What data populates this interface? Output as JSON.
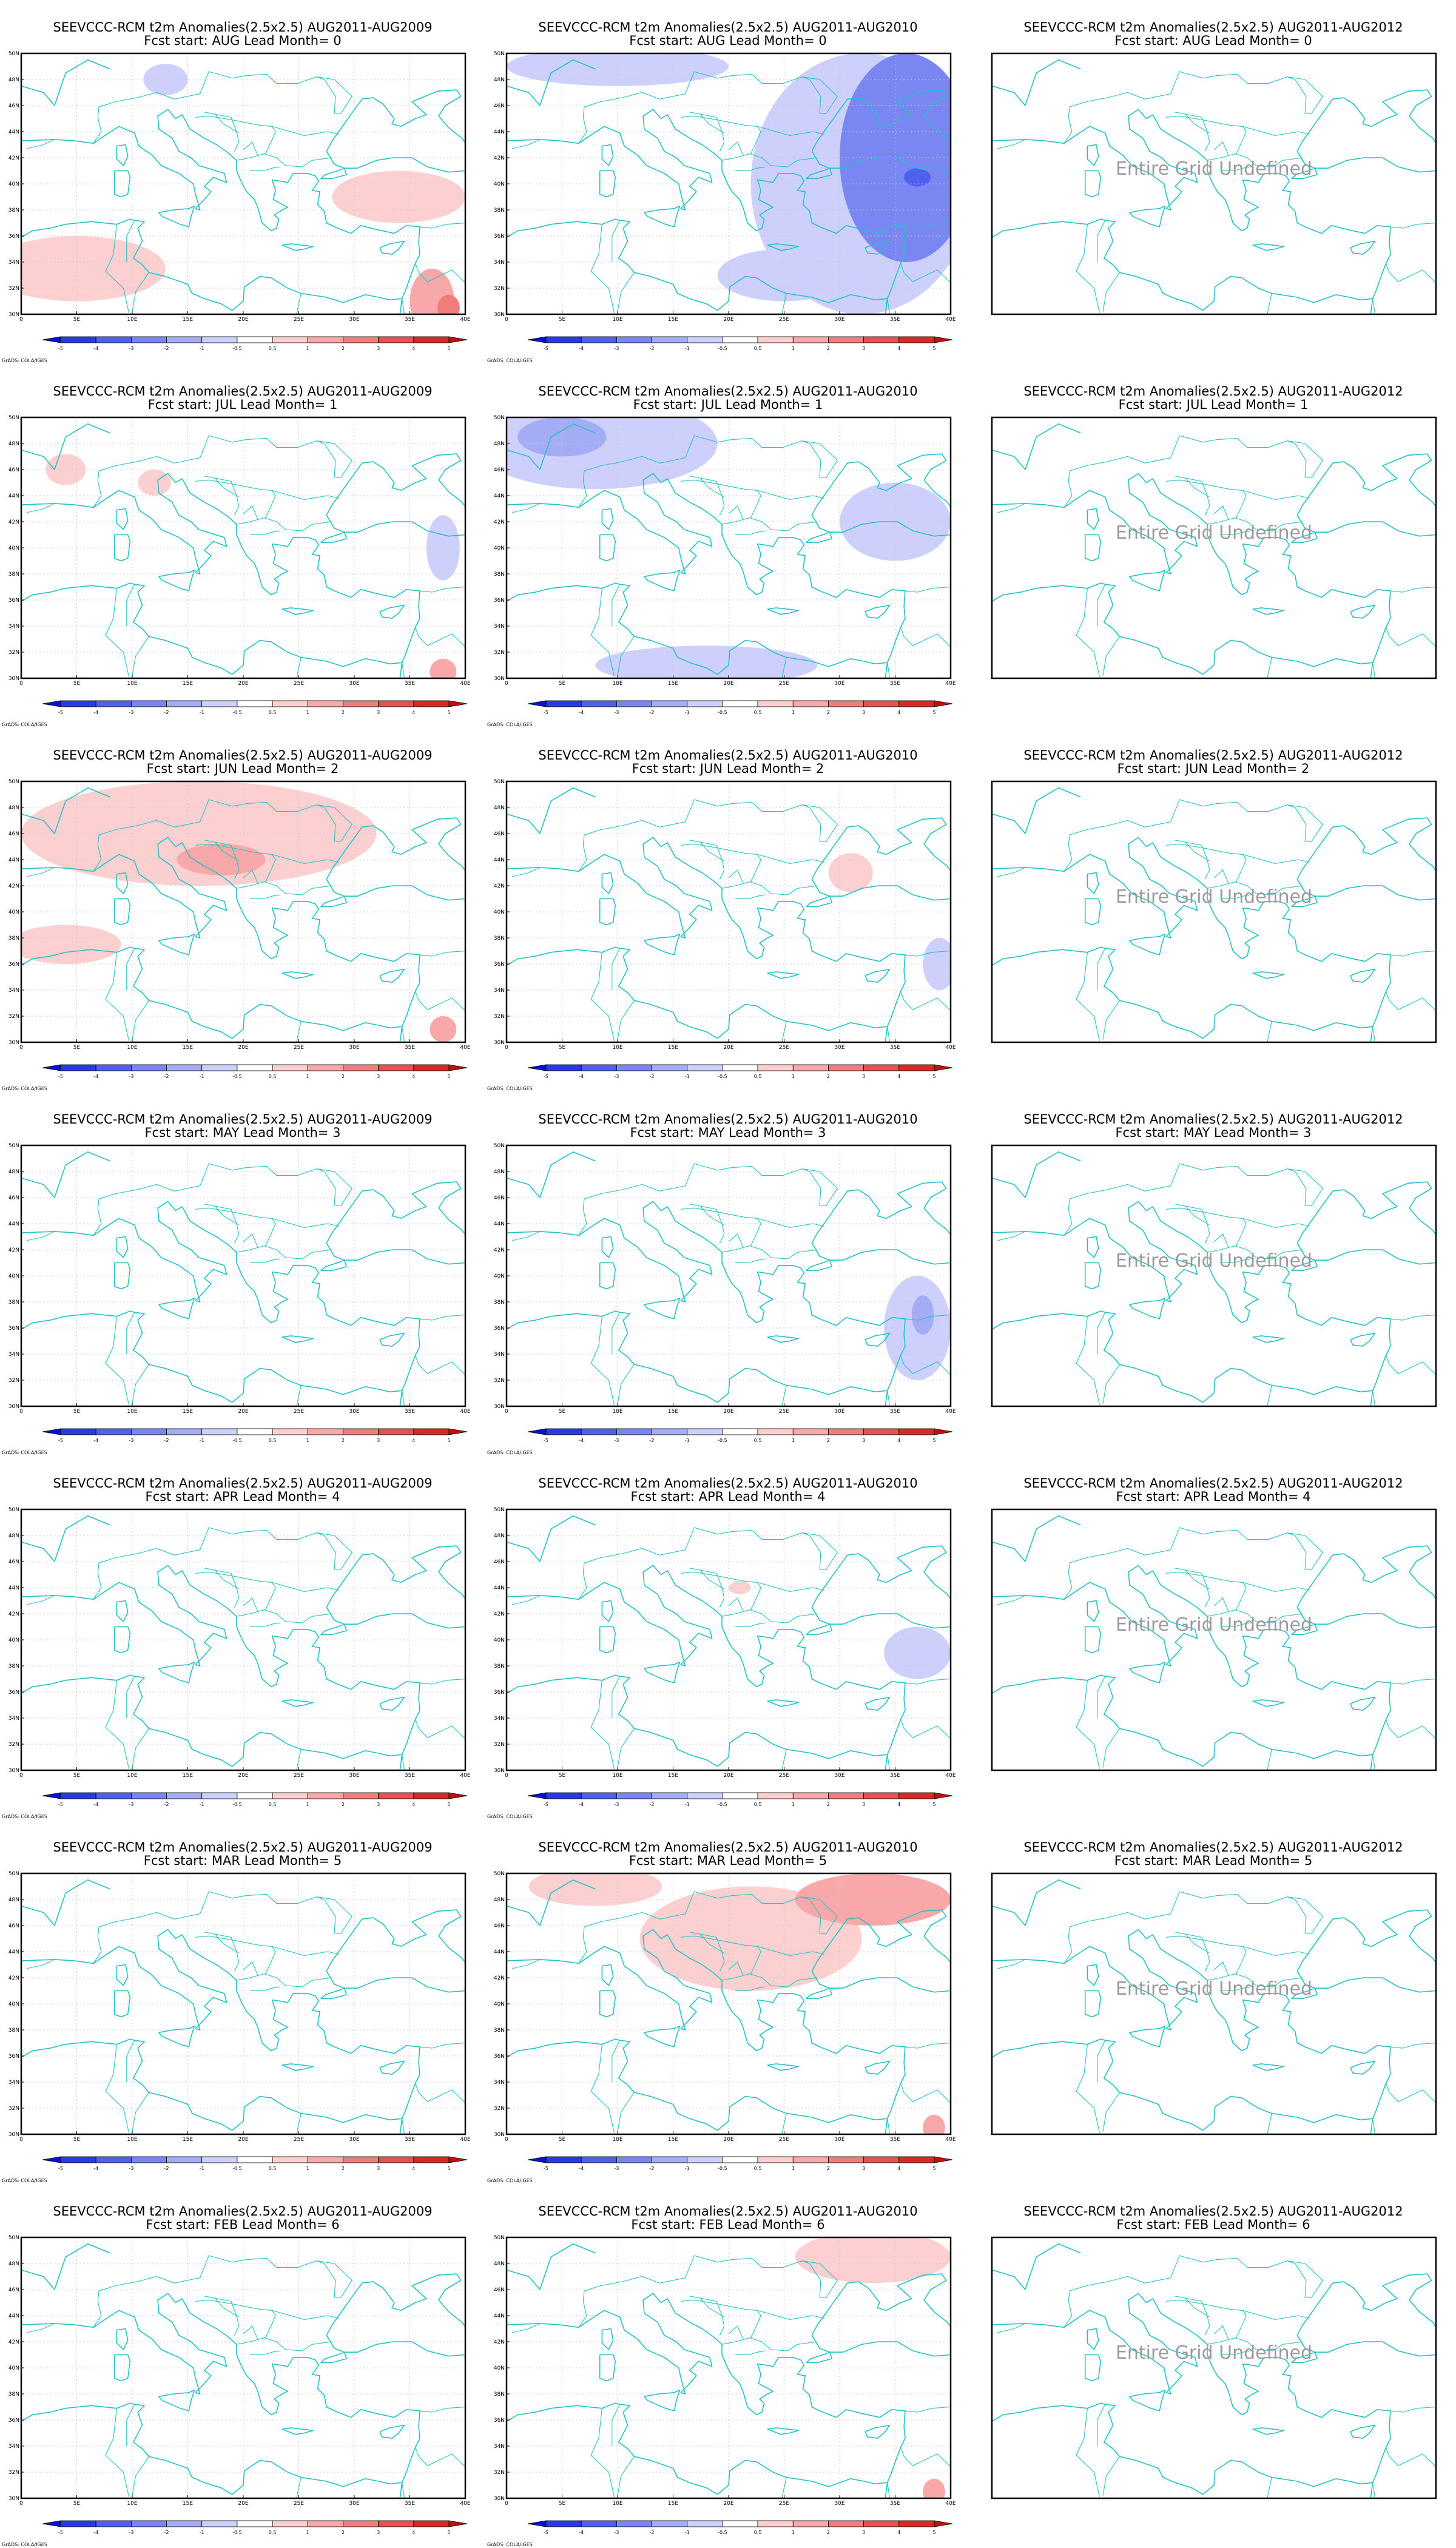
{
  "figure": {
    "columns": [
      {
        "title": "SEEVCCC-RCM t2m Anomalies(2.5x2.5) AUG2011-AUG2009"
      },
      {
        "title": "SEEVCCC-RCM t2m Anomalies(2.5x2.5) AUG2011-AUG2010"
      },
      {
        "title": "SEEVCCC-RCM t2m Anomalies(2.5x2.5) AUG2011-AUG2012"
      }
    ],
    "rows": [
      {
        "subtitle": "Fcst start: AUG  Lead Month= 0"
      },
      {
        "subtitle": "Fcst start: JUL  Lead Month= 1"
      },
      {
        "subtitle": "Fcst start: JUN  Lead Month= 2"
      },
      {
        "subtitle": "Fcst start: MAY  Lead Month= 3"
      },
      {
        "subtitle": "Fcst start: APR  Lead Month= 4"
      },
      {
        "subtitle": "Fcst start: MAR  Lead Month= 5"
      },
      {
        "subtitle": "Fcst start: FEB  Lead Month= 6"
      }
    ],
    "undefined_label": "Entire Grid Undefined",
    "credit": "GrADS: COLA/IGES",
    "x_ticks": [
      "0",
      "5E",
      "10E",
      "15E",
      "20E",
      "25E",
      "30E",
      "35E",
      "40E"
    ],
    "y_ticks": [
      "30N",
      "32N",
      "34N",
      "36N",
      "38N",
      "40N",
      "42N",
      "44N",
      "46N",
      "48N",
      "50N"
    ],
    "colorbar": {
      "labels": [
        "-5",
        "-4",
        "-3",
        "-2",
        "-1",
        "-0.5",
        "0.5",
        "1",
        "2",
        "3",
        "4",
        "5"
      ],
      "colors": [
        "#0a14d0",
        "#2a38e6",
        "#5060ee",
        "#7a86f2",
        "#a4acf6",
        "#ccd0fa",
        "#ffffff",
        "#fcd0d0",
        "#f8a8a8",
        "#f07c7c",
        "#e65050",
        "#d82828",
        "#c41010"
      ]
    },
    "colors": {
      "coast": "#22c2c8",
      "frame": "#000000",
      "grid": "#c8c8c8"
    }
  },
  "chart_data": {
    "type": "heatmap",
    "variable": "t2m Anomalies",
    "lon_range": [
      0,
      40
    ],
    "lat_range": [
      30,
      50
    ],
    "panels": [
      {
        "row": 0,
        "col": 0,
        "anomalies": [
          {
            "lon": 34,
            "lat": 39,
            "value": 0.8,
            "rx": 6,
            "ry": 2
          },
          {
            "lon": 5,
            "lat": 33.5,
            "value": 0.7,
            "rx": 8,
            "ry": 2.5
          },
          {
            "lon": 37,
            "lat": 31,
            "value": 1.5,
            "rx": 2,
            "ry": 2.5
          },
          {
            "lon": 38.5,
            "lat": 30.5,
            "value": 2.5,
            "rx": 1,
            "ry": 1
          },
          {
            "lon": 13,
            "lat": 48,
            "value": -0.7,
            "rx": 2,
            "ry": 1.2
          }
        ]
      },
      {
        "row": 0,
        "col": 1,
        "anomalies": [
          {
            "lon": 10,
            "lat": 49,
            "value": -0.7,
            "rx": 10,
            "ry": 1.5
          },
          {
            "lon": 32,
            "lat": 40,
            "value": -0.8,
            "rx": 10,
            "ry": 10
          },
          {
            "lon": 36,
            "lat": 42,
            "value": -2.5,
            "rx": 6,
            "ry": 8
          },
          {
            "lon": 37,
            "lat": 40.5,
            "value": -3.5,
            "rx": 1.2,
            "ry": 0.7
          },
          {
            "lon": 25,
            "lat": 33,
            "value": -0.6,
            "rx": 6,
            "ry": 2
          }
        ]
      },
      {
        "row": 0,
        "col": 2,
        "undefined": true,
        "anomalies": []
      },
      {
        "row": 1,
        "col": 0,
        "anomalies": [
          {
            "lon": 4,
            "lat": 46,
            "value": 0.6,
            "rx": 1.8,
            "ry": 1.2
          },
          {
            "lon": 12,
            "lat": 45,
            "value": 0.7,
            "rx": 1.5,
            "ry": 1
          },
          {
            "lon": 38,
            "lat": 40,
            "value": -0.6,
            "rx": 1.5,
            "ry": 2.5
          },
          {
            "lon": 38,
            "lat": 30.5,
            "value": 1.5,
            "rx": 1.2,
            "ry": 1
          }
        ]
      },
      {
        "row": 1,
        "col": 1,
        "anomalies": [
          {
            "lon": 8,
            "lat": 48,
            "value": -0.8,
            "rx": 11,
            "ry": 3.5
          },
          {
            "lon": 5,
            "lat": 48.5,
            "value": -1.5,
            "rx": 4,
            "ry": 1.5
          },
          {
            "lon": 35,
            "lat": 42,
            "value": -0.6,
            "rx": 5,
            "ry": 3
          },
          {
            "lon": 18,
            "lat": 31,
            "value": -0.6,
            "rx": 10,
            "ry": 1.5
          }
        ]
      },
      {
        "row": 1,
        "col": 2,
        "undefined": true,
        "anomalies": []
      },
      {
        "row": 2,
        "col": 0,
        "anomalies": [
          {
            "lon": 16,
            "lat": 46,
            "value": 0.8,
            "rx": 16,
            "ry": 4
          },
          {
            "lon": 18,
            "lat": 44,
            "value": 1.5,
            "rx": 4,
            "ry": 1.2
          },
          {
            "lon": 4,
            "lat": 37.5,
            "value": 0.6,
            "rx": 5,
            "ry": 1.5
          },
          {
            "lon": 38,
            "lat": 31,
            "value": 1.5,
            "rx": 1.2,
            "ry": 1
          }
        ]
      },
      {
        "row": 2,
        "col": 1,
        "anomalies": [
          {
            "lon": 31,
            "lat": 43,
            "value": 0.7,
            "rx": 2,
            "ry": 1.5
          },
          {
            "lon": 39,
            "lat": 36,
            "value": -0.6,
            "rx": 1.5,
            "ry": 2
          }
        ]
      },
      {
        "row": 2,
        "col": 2,
        "undefined": true,
        "anomalies": []
      },
      {
        "row": 3,
        "col": 0,
        "anomalies": []
      },
      {
        "row": 3,
        "col": 1,
        "anomalies": [
          {
            "lon": 37,
            "lat": 36,
            "value": -0.8,
            "rx": 3,
            "ry": 4
          },
          {
            "lon": 37.5,
            "lat": 37,
            "value": -1.5,
            "rx": 1,
            "ry": 1.5
          }
        ]
      },
      {
        "row": 3,
        "col": 2,
        "undefined": true,
        "anomalies": []
      },
      {
        "row": 4,
        "col": 0,
        "anomalies": []
      },
      {
        "row": 4,
        "col": 1,
        "anomalies": [
          {
            "lon": 21,
            "lat": 44,
            "value": 0.6,
            "rx": 1,
            "ry": 0.5
          },
          {
            "lon": 37,
            "lat": 39,
            "value": -0.6,
            "rx": 3,
            "ry": 2
          }
        ]
      },
      {
        "row": 4,
        "col": 2,
        "undefined": true,
        "anomalies": []
      },
      {
        "row": 5,
        "col": 0,
        "anomalies": []
      },
      {
        "row": 5,
        "col": 1,
        "anomalies": [
          {
            "lon": 22,
            "lat": 45,
            "value": 0.7,
            "rx": 10,
            "ry": 4
          },
          {
            "lon": 33,
            "lat": 48,
            "value": 1.5,
            "rx": 7,
            "ry": 2
          },
          {
            "lon": 8,
            "lat": 49,
            "value": 0.6,
            "rx": 6,
            "ry": 1.5
          },
          {
            "lon": 38.5,
            "lat": 30.5,
            "value": 1.5,
            "rx": 1,
            "ry": 1
          }
        ]
      },
      {
        "row": 5,
        "col": 2,
        "undefined": true,
        "anomalies": []
      },
      {
        "row": 6,
        "col": 0,
        "anomalies": []
      },
      {
        "row": 6,
        "col": 1,
        "anomalies": [
          {
            "lon": 33,
            "lat": 48.5,
            "value": 0.7,
            "rx": 7,
            "ry": 2
          },
          {
            "lon": 38.5,
            "lat": 30.5,
            "value": 1.5,
            "rx": 1,
            "ry": 1
          }
        ]
      },
      {
        "row": 6,
        "col": 2,
        "undefined": true,
        "anomalies": []
      }
    ]
  }
}
